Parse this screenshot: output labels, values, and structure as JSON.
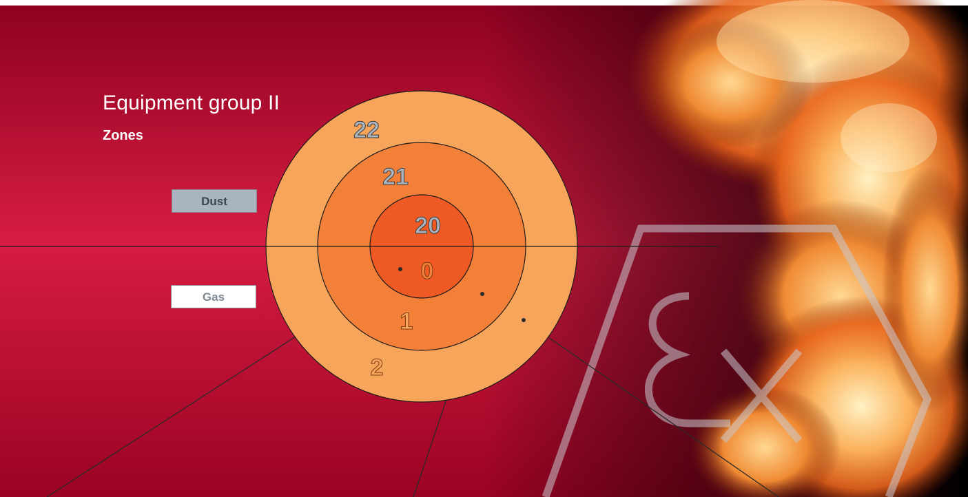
{
  "title": "Equipment group II",
  "subtitle": "Zones",
  "categories": {
    "dust": "Dust",
    "gas": "Gas"
  },
  "zones": {
    "dust": [
      "20",
      "21",
      "22"
    ],
    "gas": [
      "0",
      "1",
      "2"
    ]
  },
  "emblem": "Ex",
  "colors": {
    "background_red": "#b8102e",
    "zone_outer": "#f7a55a",
    "zone_middle": "#f28039",
    "zone_inner": "#ef5a24",
    "dust_label_bg": "#aab4be",
    "gas_label_bg": "#ffffff"
  }
}
